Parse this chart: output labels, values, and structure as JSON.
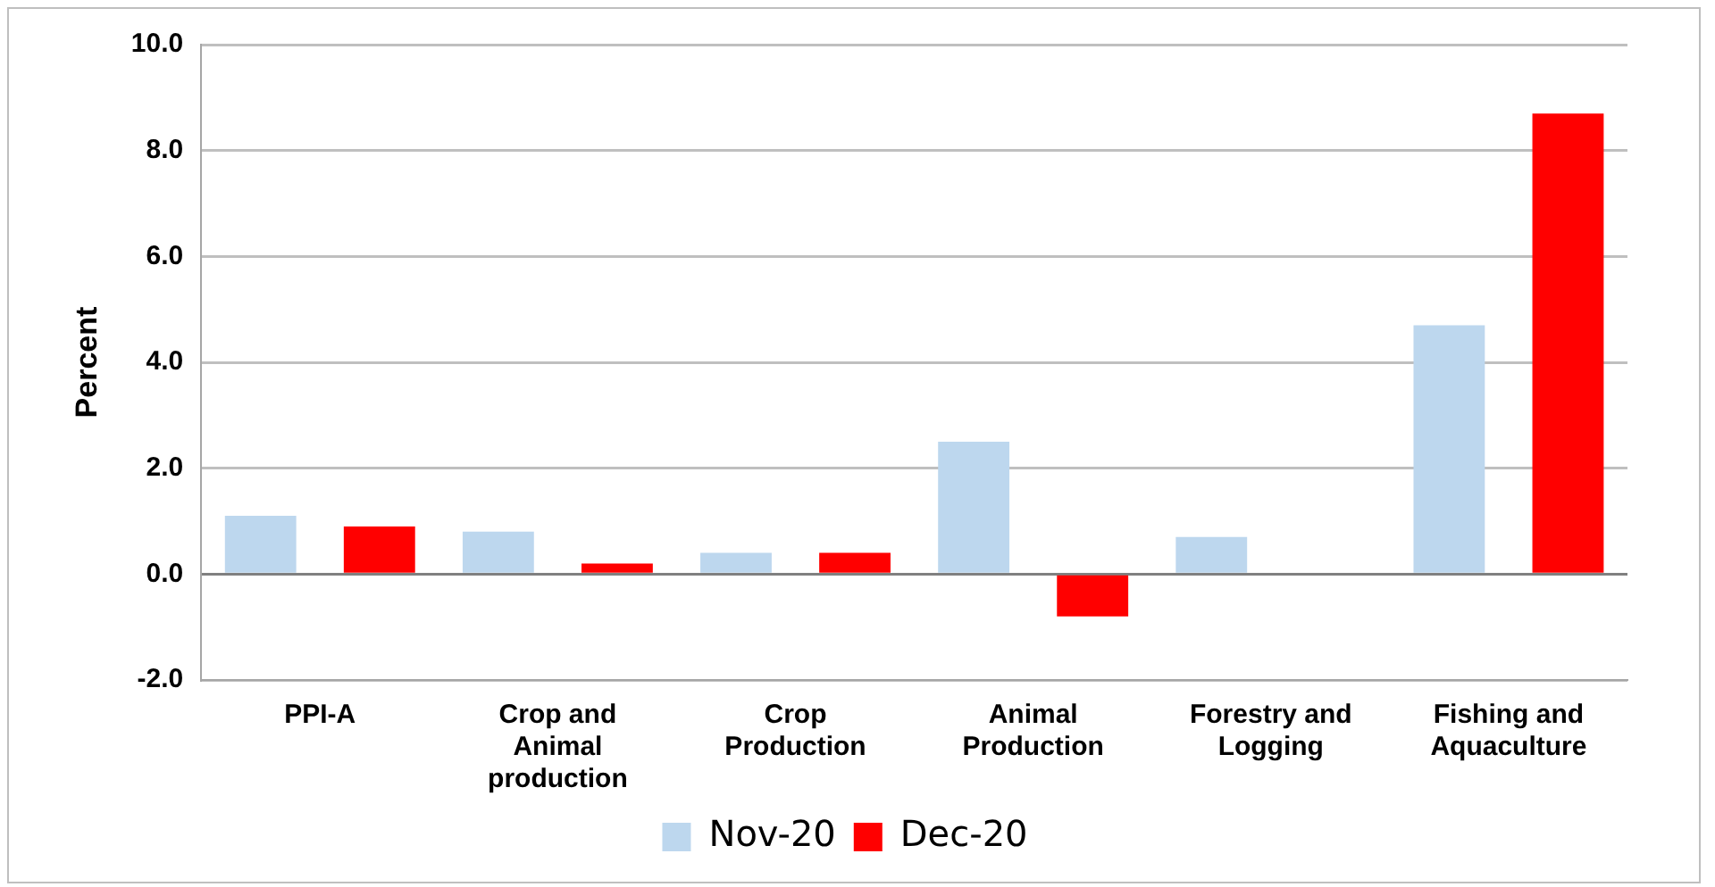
{
  "chart_data": {
    "type": "bar",
    "ylabel": "Percent",
    "categories": [
      "PPI-A",
      "Crop and Animal production",
      "Crop Production",
      "Animal Production",
      "Forestry and Logging",
      "Fishing and Aquaculture"
    ],
    "series": [
      {
        "name": "Nov-20",
        "color": "#bdd7ee",
        "values": [
          1.1,
          0.8,
          0.4,
          2.5,
          0.7,
          4.7
        ]
      },
      {
        "name": "Dec-20",
        "color": "#ff0000",
        "values": [
          0.9,
          0.2,
          0.4,
          -0.8,
          null,
          8.7
        ]
      }
    ],
    "ylim": [
      -2,
      10
    ],
    "yticks": [
      {
        "value": -2,
        "label": "-2.0"
      },
      {
        "value": 0,
        "label": "0.0"
      },
      {
        "value": 2,
        "label": "2.0"
      },
      {
        "value": 4,
        "label": "4.0"
      },
      {
        "value": 6,
        "label": "6.0"
      },
      {
        "value": 8,
        "label": "8.0"
      },
      {
        "value": 10,
        "label": "10.0"
      }
    ],
    "grid": "y",
    "legend": "bottom"
  }
}
